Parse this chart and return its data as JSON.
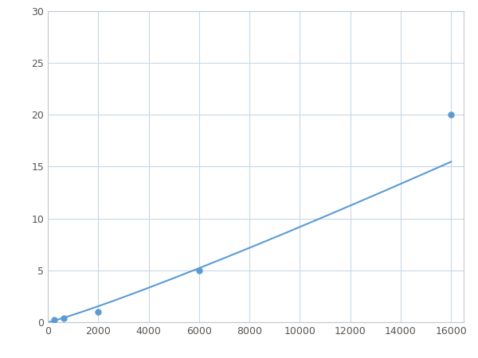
{
  "x": [
    250,
    625,
    2000,
    6000,
    16000
  ],
  "y": [
    0.2,
    0.4,
    1.0,
    5.0,
    20.0
  ],
  "line_color": "#5b9bd5",
  "marker_color": "#5b9bd5",
  "marker_size": 5,
  "line_width": 1.5,
  "xlim": [
    0,
    16500
  ],
  "ylim": [
    0,
    30
  ],
  "xticks": [
    0,
    2000,
    4000,
    6000,
    8000,
    10000,
    12000,
    14000,
    16000
  ],
  "yticks": [
    0,
    5,
    10,
    15,
    20,
    25,
    30
  ],
  "grid_color": "#c8d8e8",
  "background_color": "#ffffff",
  "figure_bg": "#ffffff"
}
